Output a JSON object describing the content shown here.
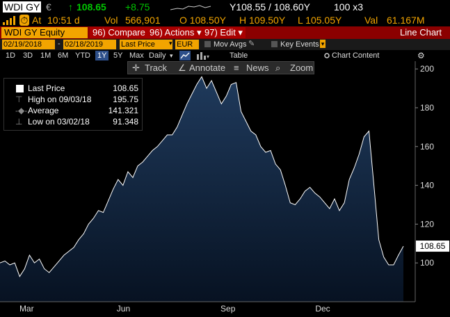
{
  "header": {
    "ticker": "WDI GY",
    "currency_symbol": "€",
    "last_price": "108.65",
    "change": "+8.75",
    "range_text": "Y108.55 / 108.60Y",
    "size_text": "100 x3",
    "at_label": "At",
    "time": "10:51 d",
    "vol_label": "Vol",
    "volume": "566,901",
    "open_text": "O 108.50Y",
    "high_text": "H 109.50Y",
    "low_text": "L 105.05Y",
    "val_label": "Val",
    "value": "61.167M"
  },
  "titlebar": {
    "security": "WDI GY Equity",
    "compare_label": "96) Compare",
    "actions_label": "96) Actions",
    "edit_label": "97) Edit",
    "chart_type": "Line Chart"
  },
  "controls": {
    "start_date": "02/19/2018",
    "end_date": "02/18/2019",
    "field": "Last Price",
    "currency": "EUR",
    "mov_avgs": "Mov Avgs",
    "key_events": "Key Events",
    "periods": [
      "1D",
      "3D",
      "1M",
      "6M",
      "YTD",
      "1Y",
      "5Y",
      "Max"
    ],
    "active_period": "1Y",
    "frequency": "Daily",
    "table_label": "Table",
    "chart_content_label": "Chart Content"
  },
  "toolbar": {
    "track": "Track",
    "annotate": "Annotate",
    "news": "News",
    "zoom": "Zoom"
  },
  "legend": {
    "title": "Last Price",
    "title_value": "108.65",
    "high_label": "High on 09/03/18",
    "high_value": "195.75",
    "avg_label": "Average",
    "avg_value": "141.321",
    "low_label": "Low on 03/02/18",
    "low_value": "91.348"
  },
  "colors": {
    "amber": "#f2a400",
    "green": "#00c800",
    "title_red": "#8b0000",
    "line": "#ffffff",
    "fill_top": "#1f3a5c"
  },
  "chart_data": {
    "type": "area",
    "series": [
      {
        "values": [
          100,
          101,
          99,
          100,
          93,
          97,
          104,
          100,
          102,
          97,
          95,
          98,
          101,
          104,
          106,
          108,
          112,
          115,
          120,
          123,
          127,
          126,
          132,
          138,
          143,
          140,
          147,
          144,
          150,
          152,
          155,
          158,
          160,
          163,
          166,
          166,
          170,
          176,
          182,
          187,
          192,
          196,
          190,
          194,
          188,
          182,
          186,
          192,
          193,
          178,
          173,
          168,
          166,
          160,
          157,
          158,
          151,
          148,
          140,
          131,
          130,
          133,
          137,
          139,
          136,
          134,
          131,
          128,
          133,
          127,
          131,
          143,
          149,
          156,
          165,
          168,
          140,
          112,
          103,
          99,
          99,
          104,
          108.65
        ]
      }
    ],
    "x_labels": [
      "Mar",
      "Jun",
      "Sep",
      "Dec"
    ],
    "y_ticks": [
      100,
      120,
      140,
      160,
      180,
      200
    ],
    "ylim": [
      80,
      204
    ],
    "current_value_label": "108.65",
    "grid": false
  }
}
